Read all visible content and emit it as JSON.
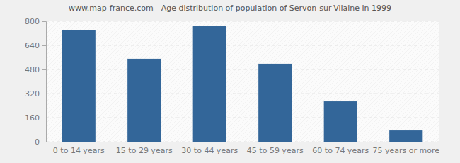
{
  "chart_data": {
    "type": "bar",
    "title": "www.map-france.com - Age distribution of population of Servon-sur-Vilaine in 1999",
    "categories": [
      "0 to 14 years",
      "15 to 29 years",
      "30 to 44 years",
      "45 to 59 years",
      "60 to 74 years",
      "75 years or more"
    ],
    "values": [
      743,
      551,
      767,
      518,
      268,
      75
    ],
    "color": "#336699",
    "ylim": [
      0,
      800
    ],
    "yticks": [
      0,
      160,
      320,
      480,
      640,
      800
    ],
    "grid": true
  }
}
